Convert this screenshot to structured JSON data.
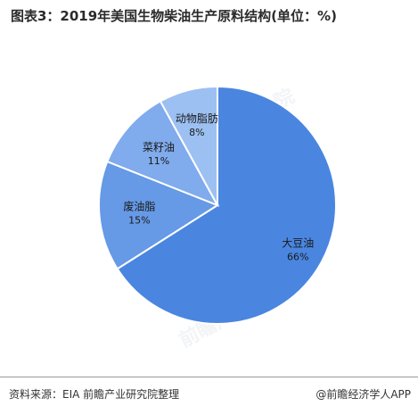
{
  "title": "图表3：2019年美国生物柴油生产原料结构(单位：%)",
  "source": "资料来源：EIA 前瞻产业研究院整理",
  "brand": "@前瞻经济学人APP",
  "watermark": "前瞻产业研究院",
  "colors": {
    "slice_border": "#ffffff",
    "label_text": "#1a1a1a"
  },
  "chart_data": {
    "type": "pie",
    "title": "图表3：2019年美国生物柴油生产原料结构(单位：%)",
    "slices": [
      {
        "label": "大豆油",
        "value": 66,
        "value_label": "66%",
        "color": "#4a86e0"
      },
      {
        "label": "废油脂",
        "value": 15,
        "value_label": "15%",
        "color": "#6699e6"
      },
      {
        "label": "菜籽油",
        "value": 11,
        "value_label": "11%",
        "color": "#80abec"
      },
      {
        "label": "动物脂肪",
        "value": 8,
        "value_label": "8%",
        "color": "#9cc0f2"
      }
    ],
    "start_angle": "12 o'clock",
    "direction": "clockwise",
    "legend": "none"
  }
}
